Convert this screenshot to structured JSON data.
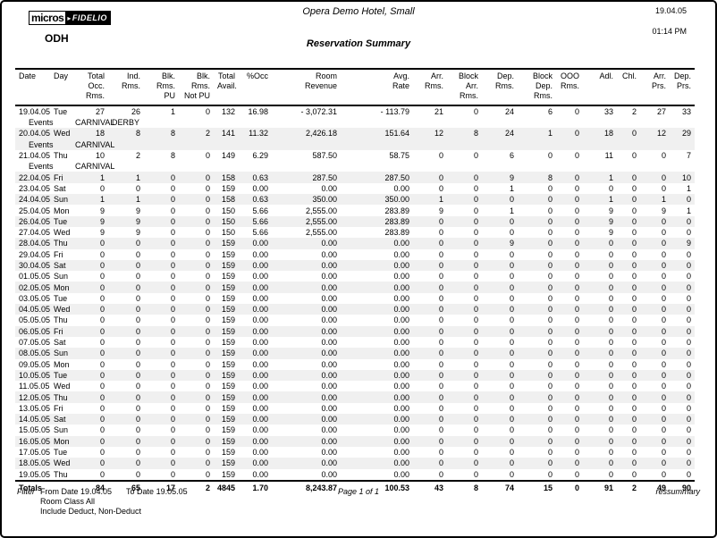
{
  "colors": {
    "row_shade": "#f0f0f0",
    "text": "#000000",
    "border": "#000000"
  },
  "header": {
    "logo_micros": "micros",
    "logo_fidelio": "FIDELIO",
    "property_code": "ODH",
    "hotel_name": "Opera Demo Hotel, Small",
    "report_title": "Reservation Summary",
    "print_date": "19.04.05",
    "print_time": "01:14 PM"
  },
  "table": {
    "columns": [
      "Date",
      "Day",
      "Total Occ.\nRms.",
      "Ind. Rms.",
      "Blk. Rms.\nPU",
      "Blk. Rms.\nNot PU",
      "Total\nAvail.",
      "%Occ",
      "Room\nRevenue",
      "Avg.\nRate",
      "Arr. Rms.",
      "Block\nArr. Rms.",
      "Dep. Rms.",
      "Block\nDep. Rms.",
      "OOO\nRms.",
      "Adl.",
      "Chl.",
      "Arr.\nPrs.",
      "Dep.\nPrs."
    ],
    "rows": [
      {
        "type": "data",
        "shaded": false,
        "date": "19.04.05",
        "day": "Tue",
        "values": [
          "27",
          "26",
          "1",
          "0",
          "132",
          "16.98",
          "- 3,072.31",
          "- 113.79",
          "21",
          "0",
          "24",
          "6",
          "0",
          "33",
          "2",
          "27",
          "33"
        ]
      },
      {
        "type": "events",
        "shaded": false,
        "label": "Events",
        "events": [
          "CARNIVAL",
          "DERBY"
        ]
      },
      {
        "type": "data",
        "shaded": true,
        "date": "20.04.05",
        "day": "Wed",
        "values": [
          "18",
          "8",
          "8",
          "2",
          "141",
          "11.32",
          "2,426.18",
          "151.64",
          "12",
          "8",
          "24",
          "1",
          "0",
          "18",
          "0",
          "12",
          "29"
        ]
      },
      {
        "type": "events",
        "shaded": true,
        "label": "Events",
        "events": [
          "CARNIVAL",
          ""
        ]
      },
      {
        "type": "data",
        "shaded": false,
        "date": "21.04.05",
        "day": "Thu",
        "values": [
          "10",
          "2",
          "8",
          "0",
          "149",
          "6.29",
          "587.50",
          "58.75",
          "0",
          "0",
          "6",
          "0",
          "0",
          "11",
          "0",
          "0",
          "7"
        ]
      },
      {
        "type": "events",
        "shaded": false,
        "label": "Events",
        "events": [
          "CARNIVAL",
          ""
        ]
      },
      {
        "type": "data",
        "shaded": true,
        "date": "22.04.05",
        "day": "Fri",
        "values": [
          "1",
          "1",
          "0",
          "0",
          "158",
          "0.63",
          "287.50",
          "287.50",
          "0",
          "0",
          "9",
          "8",
          "0",
          "1",
          "0",
          "0",
          "10"
        ]
      },
      {
        "type": "data",
        "shaded": false,
        "date": "23.04.05",
        "day": "Sat",
        "values": [
          "0",
          "0",
          "0",
          "0",
          "159",
          "0.00",
          "0.00",
          "0.00",
          "0",
          "0",
          "1",
          "0",
          "0",
          "0",
          "0",
          "0",
          "1"
        ]
      },
      {
        "type": "data",
        "shaded": true,
        "date": "24.04.05",
        "day": "Sun",
        "values": [
          "1",
          "1",
          "0",
          "0",
          "158",
          "0.63",
          "350.00",
          "350.00",
          "1",
          "0",
          "0",
          "0",
          "0",
          "1",
          "0",
          "1",
          "0"
        ]
      },
      {
        "type": "data",
        "shaded": false,
        "date": "25.04.05",
        "day": "Mon",
        "values": [
          "9",
          "9",
          "0",
          "0",
          "150",
          "5.66",
          "2,555.00",
          "283.89",
          "9",
          "0",
          "1",
          "0",
          "0",
          "9",
          "0",
          "9",
          "1"
        ]
      },
      {
        "type": "data",
        "shaded": true,
        "date": "26.04.05",
        "day": "Tue",
        "values": [
          "9",
          "9",
          "0",
          "0",
          "150",
          "5.66",
          "2,555.00",
          "283.89",
          "0",
          "0",
          "0",
          "0",
          "0",
          "9",
          "0",
          "0",
          "0"
        ]
      },
      {
        "type": "data",
        "shaded": false,
        "date": "27.04.05",
        "day": "Wed",
        "values": [
          "9",
          "9",
          "0",
          "0",
          "150",
          "5.66",
          "2,555.00",
          "283.89",
          "0",
          "0",
          "0",
          "0",
          "0",
          "9",
          "0",
          "0",
          "0"
        ]
      },
      {
        "type": "data",
        "shaded": true,
        "date": "28.04.05",
        "day": "Thu",
        "values": [
          "0",
          "0",
          "0",
          "0",
          "159",
          "0.00",
          "0.00",
          "0.00",
          "0",
          "0",
          "9",
          "0",
          "0",
          "0",
          "0",
          "0",
          "9"
        ]
      },
      {
        "type": "data",
        "shaded": false,
        "date": "29.04.05",
        "day": "Fri",
        "values": [
          "0",
          "0",
          "0",
          "0",
          "159",
          "0.00",
          "0.00",
          "0.00",
          "0",
          "0",
          "0",
          "0",
          "0",
          "0",
          "0",
          "0",
          "0"
        ]
      },
      {
        "type": "data",
        "shaded": true,
        "date": "30.04.05",
        "day": "Sat",
        "values": [
          "0",
          "0",
          "0",
          "0",
          "159",
          "0.00",
          "0.00",
          "0.00",
          "0",
          "0",
          "0",
          "0",
          "0",
          "0",
          "0",
          "0",
          "0"
        ]
      },
      {
        "type": "data",
        "shaded": false,
        "date": "01.05.05",
        "day": "Sun",
        "values": [
          "0",
          "0",
          "0",
          "0",
          "159",
          "0.00",
          "0.00",
          "0.00",
          "0",
          "0",
          "0",
          "0",
          "0",
          "0",
          "0",
          "0",
          "0"
        ]
      },
      {
        "type": "data",
        "shaded": true,
        "date": "02.05.05",
        "day": "Mon",
        "values": [
          "0",
          "0",
          "0",
          "0",
          "159",
          "0.00",
          "0.00",
          "0.00",
          "0",
          "0",
          "0",
          "0",
          "0",
          "0",
          "0",
          "0",
          "0"
        ]
      },
      {
        "type": "data",
        "shaded": false,
        "date": "03.05.05",
        "day": "Tue",
        "values": [
          "0",
          "0",
          "0",
          "0",
          "159",
          "0.00",
          "0.00",
          "0.00",
          "0",
          "0",
          "0",
          "0",
          "0",
          "0",
          "0",
          "0",
          "0"
        ]
      },
      {
        "type": "data",
        "shaded": true,
        "date": "04.05.05",
        "day": "Wed",
        "values": [
          "0",
          "0",
          "0",
          "0",
          "159",
          "0.00",
          "0.00",
          "0.00",
          "0",
          "0",
          "0",
          "0",
          "0",
          "0",
          "0",
          "0",
          "0"
        ]
      },
      {
        "type": "data",
        "shaded": false,
        "date": "05.05.05",
        "day": "Thu",
        "values": [
          "0",
          "0",
          "0",
          "0",
          "159",
          "0.00",
          "0.00",
          "0.00",
          "0",
          "0",
          "0",
          "0",
          "0",
          "0",
          "0",
          "0",
          "0"
        ]
      },
      {
        "type": "data",
        "shaded": true,
        "date": "06.05.05",
        "day": "Fri",
        "values": [
          "0",
          "0",
          "0",
          "0",
          "159",
          "0.00",
          "0.00",
          "0.00",
          "0",
          "0",
          "0",
          "0",
          "0",
          "0",
          "0",
          "0",
          "0"
        ]
      },
      {
        "type": "data",
        "shaded": false,
        "date": "07.05.05",
        "day": "Sat",
        "values": [
          "0",
          "0",
          "0",
          "0",
          "159",
          "0.00",
          "0.00",
          "0.00",
          "0",
          "0",
          "0",
          "0",
          "0",
          "0",
          "0",
          "0",
          "0"
        ]
      },
      {
        "type": "data",
        "shaded": true,
        "date": "08.05.05",
        "day": "Sun",
        "values": [
          "0",
          "0",
          "0",
          "0",
          "159",
          "0.00",
          "0.00",
          "0.00",
          "0",
          "0",
          "0",
          "0",
          "0",
          "0",
          "0",
          "0",
          "0"
        ]
      },
      {
        "type": "data",
        "shaded": false,
        "date": "09.05.05",
        "day": "Mon",
        "values": [
          "0",
          "0",
          "0",
          "0",
          "159",
          "0.00",
          "0.00",
          "0.00",
          "0",
          "0",
          "0",
          "0",
          "0",
          "0",
          "0",
          "0",
          "0"
        ]
      },
      {
        "type": "data",
        "shaded": true,
        "date": "10.05.05",
        "day": "Tue",
        "values": [
          "0",
          "0",
          "0",
          "0",
          "159",
          "0.00",
          "0.00",
          "0.00",
          "0",
          "0",
          "0",
          "0",
          "0",
          "0",
          "0",
          "0",
          "0"
        ]
      },
      {
        "type": "data",
        "shaded": false,
        "date": "11.05.05",
        "day": "Wed",
        "values": [
          "0",
          "0",
          "0",
          "0",
          "159",
          "0.00",
          "0.00",
          "0.00",
          "0",
          "0",
          "0",
          "0",
          "0",
          "0",
          "0",
          "0",
          "0"
        ]
      },
      {
        "type": "data",
        "shaded": true,
        "date": "12.05.05",
        "day": "Thu",
        "values": [
          "0",
          "0",
          "0",
          "0",
          "159",
          "0.00",
          "0.00",
          "0.00",
          "0",
          "0",
          "0",
          "0",
          "0",
          "0",
          "0",
          "0",
          "0"
        ]
      },
      {
        "type": "data",
        "shaded": false,
        "date": "13.05.05",
        "day": "Fri",
        "values": [
          "0",
          "0",
          "0",
          "0",
          "159",
          "0.00",
          "0.00",
          "0.00",
          "0",
          "0",
          "0",
          "0",
          "0",
          "0",
          "0",
          "0",
          "0"
        ]
      },
      {
        "type": "data",
        "shaded": true,
        "date": "14.05.05",
        "day": "Sat",
        "values": [
          "0",
          "0",
          "0",
          "0",
          "159",
          "0.00",
          "0.00",
          "0.00",
          "0",
          "0",
          "0",
          "0",
          "0",
          "0",
          "0",
          "0",
          "0"
        ]
      },
      {
        "type": "data",
        "shaded": false,
        "date": "15.05.05",
        "day": "Sun",
        "values": [
          "0",
          "0",
          "0",
          "0",
          "159",
          "0.00",
          "0.00",
          "0.00",
          "0",
          "0",
          "0",
          "0",
          "0",
          "0",
          "0",
          "0",
          "0"
        ]
      },
      {
        "type": "data",
        "shaded": true,
        "date": "16.05.05",
        "day": "Mon",
        "values": [
          "0",
          "0",
          "0",
          "0",
          "159",
          "0.00",
          "0.00",
          "0.00",
          "0",
          "0",
          "0",
          "0",
          "0",
          "0",
          "0",
          "0",
          "0"
        ]
      },
      {
        "type": "data",
        "shaded": false,
        "date": "17.05.05",
        "day": "Tue",
        "values": [
          "0",
          "0",
          "0",
          "0",
          "159",
          "0.00",
          "0.00",
          "0.00",
          "0",
          "0",
          "0",
          "0",
          "0",
          "0",
          "0",
          "0",
          "0"
        ]
      },
      {
        "type": "data",
        "shaded": true,
        "date": "18.05.05",
        "day": "Wed",
        "values": [
          "0",
          "0",
          "0",
          "0",
          "159",
          "0.00",
          "0.00",
          "0.00",
          "0",
          "0",
          "0",
          "0",
          "0",
          "0",
          "0",
          "0",
          "0"
        ]
      },
      {
        "type": "data",
        "shaded": false,
        "date": "19.05.05",
        "day": "Thu",
        "values": [
          "0",
          "0",
          "0",
          "0",
          "159",
          "0.00",
          "0.00",
          "0.00",
          "0",
          "0",
          "0",
          "0",
          "0",
          "0",
          "0",
          "0",
          "0"
        ]
      }
    ],
    "totals": {
      "label": "Totals",
      "values": [
        "84",
        "65",
        "17",
        "2",
        "4845",
        "1.70",
        "8,243.87",
        "100.53",
        "43",
        "8",
        "74",
        "15",
        "0",
        "91",
        "2",
        "49",
        "90"
      ]
    }
  },
  "footer": {
    "filter_label": "Filter",
    "from_date": "From Date 19.04.05",
    "to_date": "To Date 19.05.05",
    "room_class": "Room Class All",
    "include": "Include Deduct, Non-Deduct",
    "page_label": "Page 1 of 1",
    "report_code": "ressummary"
  }
}
